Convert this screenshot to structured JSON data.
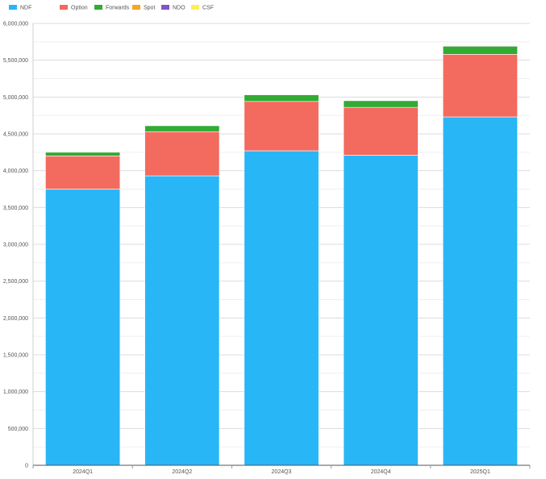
{
  "chart_data": {
    "type": "bar",
    "stacked": true,
    "categories": [
      "2024Q1",
      "2024Q2",
      "2024Q3",
      "2024Q4",
      "2025Q1"
    ],
    "series": [
      {
        "name": "NDF",
        "color": "#29b6f6",
        "values": [
          3750000,
          3930000,
          4270000,
          4210000,
          4730000
        ]
      },
      {
        "name": "Option",
        "color": "#f26b5e",
        "values": [
          450000,
          600000,
          670000,
          650000,
          850000
        ]
      },
      {
        "name": "Forwards",
        "color": "#33aa33",
        "values": [
          50000,
          80000,
          90000,
          90000,
          110000
        ]
      },
      {
        "name": "Spot",
        "color": "#f5a623",
        "values": [
          0,
          0,
          0,
          0,
          0
        ]
      },
      {
        "name": "NDO",
        "color": "#7e57c2",
        "values": [
          0,
          0,
          0,
          0,
          0
        ]
      },
      {
        "name": "CSF",
        "color": "#ffee58",
        "values": [
          0,
          0,
          0,
          0,
          0
        ]
      }
    ],
    "ylim": [
      0,
      6000000
    ],
    "yticks": [
      0,
      500000,
      1000000,
      1500000,
      2000000,
      2500000,
      3000000,
      3500000,
      4000000,
      4500000,
      5000000,
      5500000,
      6000000
    ],
    "ytick_labels": [
      "0",
      "500,000",
      "1,000,000",
      "1,500,000",
      "2,000,000",
      "2,500,000",
      "3,000,000",
      "3,500,000",
      "4,000,000",
      "4,500,000",
      "5,000,000",
      "5,500,000",
      "6,000,000"
    ],
    "grid": true,
    "legend": "top-left",
    "title": "",
    "xlabel": "",
    "ylabel": ""
  }
}
